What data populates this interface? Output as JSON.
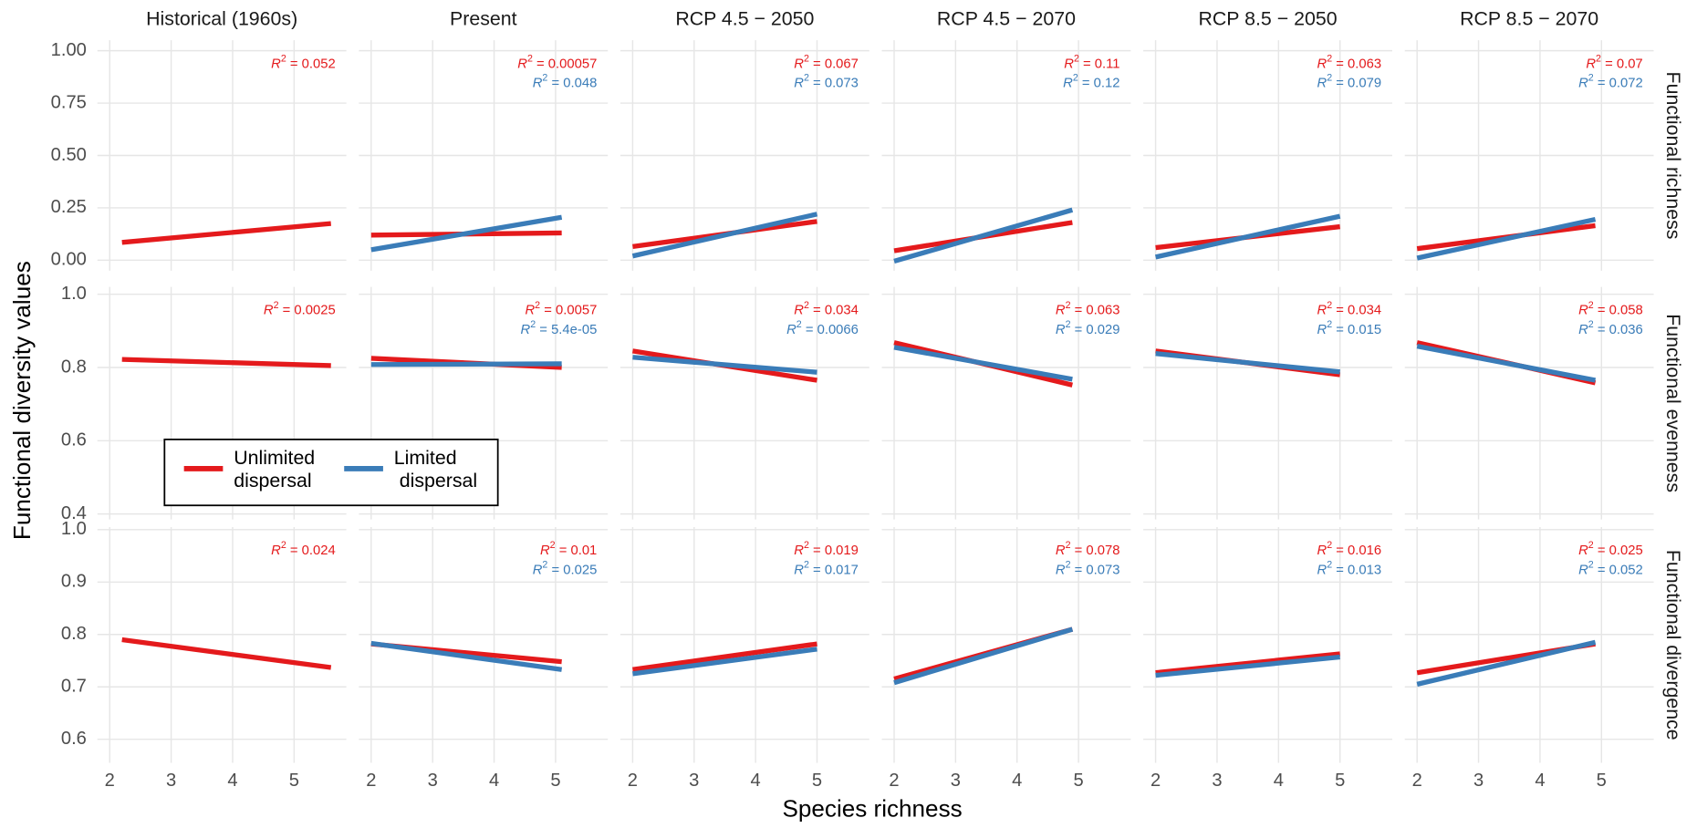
{
  "chart_data": {
    "type": "line",
    "x_label": "Species richness",
    "y_label": "Functional diversity values",
    "columns": [
      "Historical (1960s)",
      "Present",
      "RCP 4.5 − 2050",
      "RCP 4.5 − 2070",
      "RCP 8.5 − 2050",
      "RCP 8.5 − 2070"
    ],
    "xlim": [
      1.8,
      5.85
    ],
    "xticks": [
      2,
      3,
      4,
      5
    ],
    "grid": true,
    "r2_text": {
      "base": "R",
      "sup": "2",
      "sign": " = "
    },
    "series": [
      {
        "name": "Unlimited\ndispersal",
        "color": "#e41a1c"
      },
      {
        "name": "Limited\n dispersal",
        "color": "#3a7cb8"
      }
    ],
    "legend": "inside-bottom-left",
    "rows": [
      {
        "name": "Functional richness",
        "ylim": [
          -0.05,
          1.05
        ],
        "yticks": [
          {
            "value": 0,
            "label": "0.00"
          },
          0.25,
          {
            "value": 0.5,
            "label": "0.50"
          },
          0.75,
          {
            "value": 1,
            "label": "1.00"
          }
        ],
        "panels": [
          {
            "lines": [
              {
                "x": [
                  2.2,
                  5.6
                ],
                "y": [
                  0.085,
                  0.175
                ],
                "r2": 0.052
              }
            ]
          },
          {
            "lines": [
              {
                "x": [
                  2.0,
                  5.1
                ],
                "y": [
                  0.12,
                  0.13
                ],
                "r2": 0.00057
              },
              {
                "x": [
                  2.0,
                  5.1
                ],
                "y": [
                  0.05,
                  0.205
                ],
                "r2": 0.048
              }
            ]
          },
          {
            "lines": [
              {
                "x": [
                  2.0,
                  5.0
                ],
                "y": [
                  0.065,
                  0.185
                ],
                "r2": 0.067
              },
              {
                "x": [
                  2.0,
                  5.0
                ],
                "y": [
                  0.02,
                  0.22
                ],
                "r2": 0.073
              }
            ]
          },
          {
            "lines": [
              {
                "x": [
                  2.0,
                  4.9
                ],
                "y": [
                  0.045,
                  0.18
                ],
                "r2": 0.11
              },
              {
                "x": [
                  2.0,
                  4.9
                ],
                "y": [
                  -0.005,
                  0.24
                ],
                "r2": 0.12
              }
            ]
          },
          {
            "lines": [
              {
                "x": [
                  2.0,
                  5.0
                ],
                "y": [
                  0.06,
                  0.16
                ],
                "r2": 0.063
              },
              {
                "x": [
                  2.0,
                  5.0
                ],
                "y": [
                  0.015,
                  0.21
                ],
                "r2": 0.079
              }
            ]
          },
          {
            "lines": [
              {
                "x": [
                  2.0,
                  4.9
                ],
                "y": [
                  0.055,
                  0.165
                ],
                "r2": 0.07
              },
              {
                "x": [
                  2.0,
                  4.9
                ],
                "y": [
                  0.01,
                  0.195
                ],
                "r2": 0.072
              }
            ]
          }
        ]
      },
      {
        "name": "Functional evenness",
        "ylim": [
          0.385,
          1.02
        ],
        "yticks": [
          0.4,
          0.6,
          0.8,
          {
            "value": 1,
            "label": "1.0"
          }
        ],
        "panels": [
          {
            "lines": [
              {
                "x": [
                  2.2,
                  5.6
                ],
                "y": [
                  0.822,
                  0.805
                ],
                "r2": 0.0025
              }
            ]
          },
          {
            "lines": [
              {
                "x": [
                  2.0,
                  5.1
                ],
                "y": [
                  0.825,
                  0.8
                ],
                "r2": 0.0057
              },
              {
                "x": [
                  2.0,
                  5.1
                ],
                "y": [
                  0.808,
                  0.81
                ],
                "r2": {
                  "value": 5.4e-05,
                  "label": "5.4e-05"
                }
              }
            ]
          },
          {
            "lines": [
              {
                "x": [
                  2.0,
                  5.0
                ],
                "y": [
                  0.845,
                  0.765
                ],
                "r2": 0.034
              },
              {
                "x": [
                  2.0,
                  5.0
                ],
                "y": [
                  0.828,
                  0.787
                ],
                "r2": 0.0066
              }
            ]
          },
          {
            "lines": [
              {
                "x": [
                  2.0,
                  4.9
                ],
                "y": [
                  0.868,
                  0.752
                ],
                "r2": 0.063
              },
              {
                "x": [
                  2.0,
                  4.9
                ],
                "y": [
                  0.855,
                  0.768
                ],
                "r2": 0.029
              }
            ]
          },
          {
            "lines": [
              {
                "x": [
                  2.0,
                  5.0
                ],
                "y": [
                  0.845,
                  0.78
                ],
                "r2": 0.034
              },
              {
                "x": [
                  2.0,
                  5.0
                ],
                "y": [
                  0.838,
                  0.788
                ],
                "r2": 0.015
              }
            ]
          },
          {
            "lines": [
              {
                "x": [
                  2.0,
                  4.9
                ],
                "y": [
                  0.868,
                  0.758
                ],
                "r2": 0.058
              },
              {
                "x": [
                  2.0,
                  4.9
                ],
                "y": [
                  0.858,
                  0.765
                ],
                "r2": 0.036
              }
            ]
          }
        ]
      },
      {
        "name": "Functional divergence",
        "ylim": [
          0.555,
          1.005
        ],
        "yticks": [
          0.6,
          0.7,
          0.8,
          0.9,
          {
            "value": 1,
            "label": "1.0"
          }
        ],
        "panels": [
          {
            "lines": [
              {
                "x": [
                  2.2,
                  5.6
                ],
                "y": [
                  0.79,
                  0.737
                ],
                "r2": 0.024
              }
            ]
          },
          {
            "lines": [
              {
                "x": [
                  2.0,
                  5.1
                ],
                "y": [
                  0.782,
                  0.748
                ],
                "r2": 0.01
              },
              {
                "x": [
                  2.0,
                  5.1
                ],
                "y": [
                  0.783,
                  0.733
                ],
                "r2": 0.025
              }
            ]
          },
          {
            "lines": [
              {
                "x": [
                  2.0,
                  5.0
                ],
                "y": [
                  0.733,
                  0.782
                ],
                "r2": 0.019
              },
              {
                "x": [
                  2.0,
                  5.0
                ],
                "y": [
                  0.725,
                  0.772
                ],
                "r2": 0.017
              }
            ]
          },
          {
            "lines": [
              {
                "x": [
                  2.0,
                  4.9
                ],
                "y": [
                  0.715,
                  0.81
                ],
                "r2": 0.078
              },
              {
                "x": [
                  2.0,
                  4.9
                ],
                "y": [
                  0.708,
                  0.81
                ],
                "r2": 0.073
              }
            ]
          },
          {
            "lines": [
              {
                "x": [
                  2.0,
                  5.0
                ],
                "y": [
                  0.727,
                  0.763
                ],
                "r2": 0.016
              },
              {
                "x": [
                  2.0,
                  5.0
                ],
                "y": [
                  0.722,
                  0.757
                ],
                "r2": 0.013
              }
            ]
          },
          {
            "lines": [
              {
                "x": [
                  2.0,
                  4.9
                ],
                "y": [
                  0.727,
                  0.782
                ],
                "r2": 0.025
              },
              {
                "x": [
                  2.0,
                  4.9
                ],
                "y": [
                  0.705,
                  0.785
                ],
                "r2": 0.052
              }
            ]
          }
        ]
      }
    ]
  }
}
